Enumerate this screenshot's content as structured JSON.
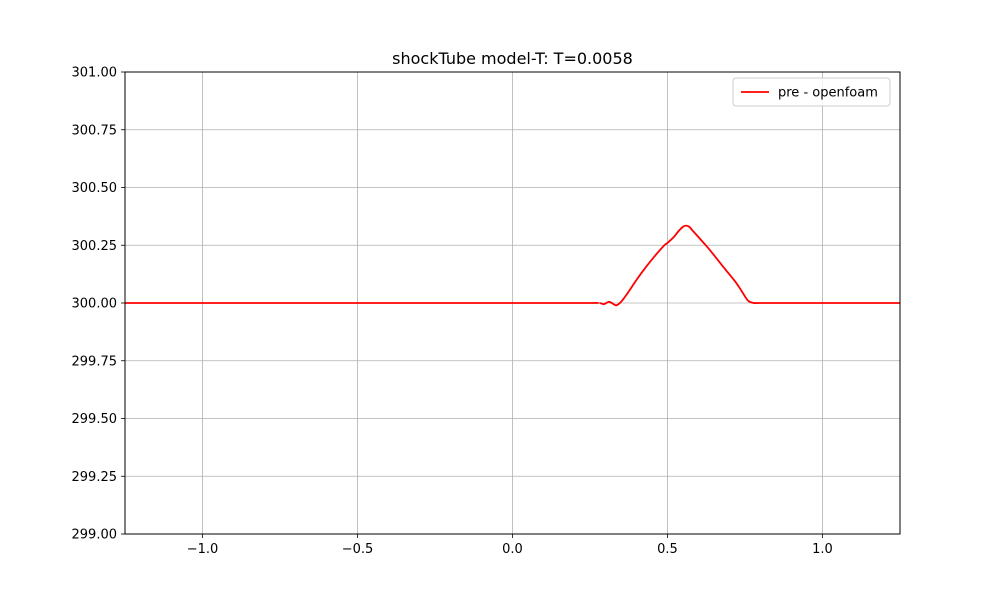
{
  "chart_data": {
    "type": "line",
    "title": "shockTube model-T: T=0.0058",
    "xlabel": "",
    "ylabel": "",
    "xlim": [
      -1.25,
      1.25
    ],
    "ylim": [
      299.0,
      301.0
    ],
    "grid": true,
    "legend": "top-right",
    "x_ticks": [
      -1.0,
      -0.5,
      0.0,
      0.5,
      1.0
    ],
    "x_tick_labels": [
      "−1.0",
      "−0.5",
      "0.0",
      "0.5",
      "1.0"
    ],
    "y_ticks": [
      299.0,
      299.25,
      299.5,
      299.75,
      300.0,
      300.25,
      300.5,
      300.75,
      301.0
    ],
    "y_tick_labels": [
      "299.00",
      "299.25",
      "299.50",
      "299.75",
      "300.00",
      "300.25",
      "300.50",
      "300.75",
      "301.00"
    ],
    "series": [
      {
        "name": "pre - openfoam",
        "color": "#ff0000",
        "x": [
          -1.25,
          0.0,
          0.25,
          0.28,
          0.295,
          0.31,
          0.32,
          0.335,
          0.35,
          0.37,
          0.4,
          0.43,
          0.46,
          0.49,
          0.5,
          0.52,
          0.535,
          0.55,
          0.56,
          0.57,
          0.58,
          0.6,
          0.63,
          0.66,
          0.69,
          0.72,
          0.74,
          0.76,
          0.78,
          0.8,
          1.0,
          1.25
        ],
        "y": [
          300.0,
          300.0,
          300.0,
          300.0,
          299.995,
          300.005,
          300.0,
          299.99,
          300.005,
          300.04,
          300.1,
          300.155,
          300.205,
          300.25,
          300.26,
          300.285,
          300.31,
          300.33,
          300.335,
          300.33,
          300.315,
          300.285,
          300.24,
          300.19,
          300.14,
          300.09,
          300.05,
          300.01,
          300.0,
          300.0,
          300.0,
          300.0
        ]
      }
    ]
  }
}
